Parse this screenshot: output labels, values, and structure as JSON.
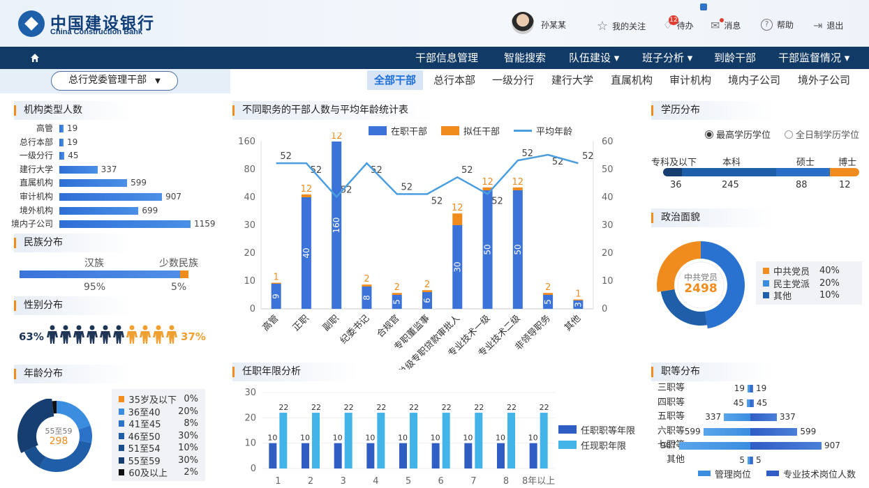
{
  "header": {
    "logo_cn": "中国建设银行",
    "logo_en": "China Construction Bank",
    "user_name": "孙某某",
    "follow": "我的关注",
    "todo": "待办",
    "todo_count": "12",
    "messages": "消息",
    "help": "帮助",
    "logout": "退出"
  },
  "nav": [
    "部信息管理",
    "智能搜索",
    "队伍建设 ▾",
    "班子分析 ▾",
    "到龄干部",
    "干部监督情况 ▾"
  ],
  "nav_first": "干部信息管理",
  "filter": {
    "dropdown": "总行党委管理干部"
  },
  "tabs": [
    "全部干部",
    "总行本部",
    "一级分行",
    "建行大学",
    "直属机构",
    "审计机构",
    "境内子公司",
    "境外子公司"
  ],
  "org": {
    "title": "机构类型人数",
    "items": [
      {
        "label": "高管",
        "value": 19
      },
      {
        "label": "总行本部",
        "value": 19
      },
      {
        "label": "一级分行",
        "value": 45
      },
      {
        "label": "建行大学",
        "value": 337
      },
      {
        "label": "直属机构",
        "value": 599
      },
      {
        "label": "审计机构",
        "value": 907
      },
      {
        "label": "境外机构",
        "value": 699
      },
      {
        "label": "境内子公司",
        "value": 1159
      }
    ]
  },
  "ethnic": {
    "title": "民族分布",
    "a_label": "汉族",
    "b_label": "少数民族",
    "a_pct": "95%",
    "b_pct": "5%",
    "a_value": 95
  },
  "gender": {
    "title": "性别分布",
    "male": "63%",
    "female": "37%",
    "male_count": 6,
    "female_count": 4
  },
  "age": {
    "title": "年龄分布",
    "center_label": "55至59",
    "center_value": "298",
    "items": [
      {
        "label": "35岁及以下",
        "pct": "0%",
        "color": "#f08c1e",
        "v": 0
      },
      {
        "label": "36至40",
        "pct": "20%",
        "color": "#3b8de0",
        "v": 20
      },
      {
        "label": "41至45",
        "pct": "8%",
        "color": "#2b72c9",
        "v": 8
      },
      {
        "label": "46至50",
        "pct": "30%",
        "color": "#1f5ea8",
        "v": 30
      },
      {
        "label": "51至54",
        "pct": "10%",
        "color": "#1a4f8f",
        "v": 10
      },
      {
        "label": "55至59",
        "pct": "30%",
        "color": "#173e70",
        "v": 30
      },
      {
        "label": "60及以上",
        "pct": "2%",
        "color": "#111111",
        "v": 2
      }
    ]
  },
  "main": {
    "title": "不同职务的干部人数与平均年龄统计表",
    "legend": [
      "在职干部",
      "拟任干部",
      "平均年龄"
    ]
  },
  "chart_data": [
    {
      "type": "bar",
      "title": "不同职务的干部人数与平均年龄统计表",
      "categories": [
        "高管",
        "正职",
        "副职",
        "纪委书记",
        "合规官",
        "专职董监事",
        "副总级专职贷款审批人",
        "专业技术一级",
        "专业技术二级",
        "非领导职务",
        "其他"
      ],
      "series": [
        {
          "name": "在职干部",
          "values": [
            9,
            40,
            160,
            8,
            5,
            6,
            30,
            50,
            50,
            5,
            3
          ]
        },
        {
          "name": "拟任干部",
          "values": [
            1,
            12,
            12,
            2,
            2,
            2,
            12,
            12,
            12,
            2,
            1
          ]
        },
        {
          "name": "平均年龄",
          "axis": "right",
          "values": [
            52,
            52,
            52,
            52,
            52,
            52,
            52,
            52,
            52,
            52,
            52
          ],
          "plotted": [
            52,
            52,
            40,
            52,
            41,
            41,
            47,
            41,
            53,
            55,
            52
          ]
        }
      ],
      "ylim_left": [
        0,
        160
      ],
      "ylim_right": [
        0,
        60
      ]
    },
    {
      "type": "bar",
      "title": "任职年限分析",
      "categories": [
        "1",
        "2",
        "3",
        "4",
        "5",
        "6",
        "7",
        "8",
        "8年以上"
      ],
      "series": [
        {
          "name": "任职职等年限",
          "values": [
            10,
            10,
            10,
            10,
            10,
            10,
            10,
            10,
            10
          ]
        },
        {
          "name": "任现职年限",
          "values": [
            22,
            22,
            22,
            22,
            22,
            22,
            22,
            22,
            22
          ]
        }
      ],
      "ylim": [
        0,
        30
      ]
    },
    {
      "type": "bar",
      "title": "职等分布",
      "categories": [
        "三职等",
        "四职等",
        "五职等",
        "六职等",
        "七职等",
        "其他"
      ],
      "series": [
        {
          "name": "管理岗位",
          "values": [
            19,
            45,
            337,
            599,
            907,
            5
          ]
        },
        {
          "name": "专业技术岗位人数",
          "values": [
            19,
            45,
            337,
            599,
            907,
            5
          ]
        }
      ]
    }
  ],
  "edu": {
    "title": "学历分布",
    "radio_a": "最高学历学位",
    "radio_b": "全日制学历学位",
    "items": [
      {
        "label": "专科及以下",
        "value": "36"
      },
      {
        "label": "本科",
        "value": "245"
      },
      {
        "label": "硕士",
        "value": "88"
      },
      {
        "label": "博士",
        "value": "12"
      }
    ]
  },
  "politics": {
    "title": "政治面貌",
    "center_label": "中共党员",
    "center_value": "2498",
    "items": [
      {
        "label": "中共党员",
        "pct": "40%",
        "color": "#f08c1e"
      },
      {
        "label": "民主党派",
        "pct": "20%",
        "color": "#3b8de0"
      },
      {
        "label": "其他",
        "pct": "10%",
        "color": "#1f5ea8"
      }
    ]
  },
  "tenure": {
    "title": "任职年限分析",
    "legend": [
      "任职职等年限",
      "任现职年限"
    ]
  },
  "grade": {
    "title": "职等分布",
    "legend": [
      "管理岗位",
      "专业技术岗位人数"
    ]
  }
}
